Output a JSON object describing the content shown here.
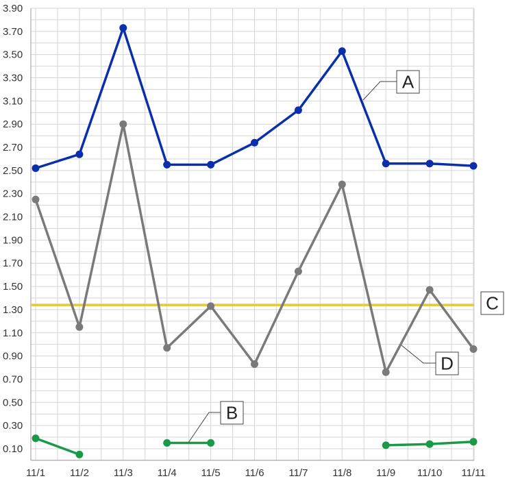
{
  "chart_data": {
    "type": "line",
    "title": "",
    "xlabel": "",
    "ylabel": "",
    "categories": [
      "11/1",
      "11/2",
      "11/3",
      "11/4",
      "11/5",
      "11/6",
      "11/7",
      "11/8",
      "11/9",
      "11/10",
      "11/11"
    ],
    "ylim": [
      0,
      3.9
    ],
    "yticks": [
      "0.10",
      "0.30",
      "0.50",
      "0.70",
      "0.90",
      "1.10",
      "1.30",
      "1.50",
      "1.70",
      "1.90",
      "2.10",
      "2.30",
      "2.50",
      "2.70",
      "2.90",
      "3.10",
      "3.30",
      "3.50",
      "3.70",
      "3.90"
    ],
    "grid": true,
    "series": [
      {
        "name": "A",
        "color": "#0a2fa8",
        "values": [
          2.52,
          2.64,
          3.73,
          2.55,
          2.55,
          2.74,
          3.02,
          3.53,
          2.56,
          2.56,
          2.54
        ]
      },
      {
        "name": "B",
        "color": "#1a9a48",
        "values": [
          0.19,
          0.05,
          null,
          0.15,
          0.15,
          null,
          null,
          null,
          0.13,
          0.14,
          0.16
        ]
      },
      {
        "name": "C",
        "color": "#e8c838",
        "type": "reference",
        "values": [
          1.34,
          1.34,
          1.34,
          1.34,
          1.34,
          1.34,
          1.34,
          1.34,
          1.34,
          1.34,
          1.34
        ]
      },
      {
        "name": "D",
        "color": "#7a7a7a",
        "values": [
          2.25,
          1.15,
          2.9,
          0.97,
          1.33,
          0.83,
          1.63,
          2.38,
          0.76,
          1.47,
          0.96
        ]
      }
    ]
  }
}
